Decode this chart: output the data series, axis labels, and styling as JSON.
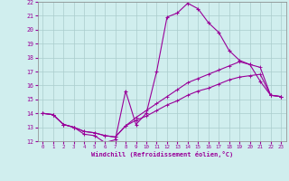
{
  "xlabel": "Windchill (Refroidissement éolien,°C)",
  "background_color": "#d0eeee",
  "grid_color": "#aacccc",
  "line_color": "#990099",
  "xlim": [
    -0.5,
    23.5
  ],
  "ylim": [
    12,
    22
  ],
  "xticks": [
    0,
    1,
    2,
    3,
    4,
    5,
    6,
    7,
    8,
    9,
    10,
    11,
    12,
    13,
    14,
    15,
    16,
    17,
    18,
    19,
    20,
    21,
    22,
    23
  ],
  "yticks": [
    12,
    13,
    14,
    15,
    16,
    17,
    18,
    19,
    20,
    21,
    22
  ],
  "series0_x": [
    0,
    1,
    2,
    3,
    4,
    5,
    6,
    7,
    8,
    9,
    10,
    11,
    12,
    13,
    14,
    15,
    16,
    17,
    18,
    19,
    20,
    21,
    22,
    23
  ],
  "series0_y": [
    14.0,
    13.9,
    13.2,
    13.0,
    12.5,
    12.4,
    11.9,
    12.1,
    15.6,
    13.2,
    14.0,
    17.0,
    20.9,
    21.2,
    21.9,
    21.5,
    20.5,
    19.8,
    18.5,
    17.8,
    17.5,
    16.3,
    15.3,
    15.2
  ],
  "series1_x": [
    0,
    1,
    2,
    3,
    4,
    5,
    6,
    7,
    8,
    9,
    10,
    11,
    12,
    13,
    14,
    15,
    16,
    17,
    18,
    19,
    20,
    21,
    22,
    23
  ],
  "series1_y": [
    14.0,
    13.9,
    13.2,
    13.0,
    12.7,
    12.6,
    12.4,
    12.3,
    13.1,
    13.5,
    13.8,
    14.2,
    14.6,
    14.9,
    15.3,
    15.6,
    15.8,
    16.1,
    16.4,
    16.6,
    16.7,
    16.8,
    15.3,
    15.2
  ],
  "series2_x": [
    0,
    1,
    2,
    3,
    4,
    5,
    6,
    7,
    8,
    9,
    10,
    11,
    12,
    13,
    14,
    15,
    16,
    17,
    18,
    19,
    20,
    21,
    22,
    23
  ],
  "series2_y": [
    14.0,
    13.9,
    13.2,
    13.0,
    12.7,
    12.6,
    12.4,
    12.3,
    13.1,
    13.7,
    14.2,
    14.7,
    15.2,
    15.7,
    16.2,
    16.5,
    16.8,
    17.1,
    17.4,
    17.7,
    17.5,
    17.3,
    15.3,
    15.2
  ]
}
